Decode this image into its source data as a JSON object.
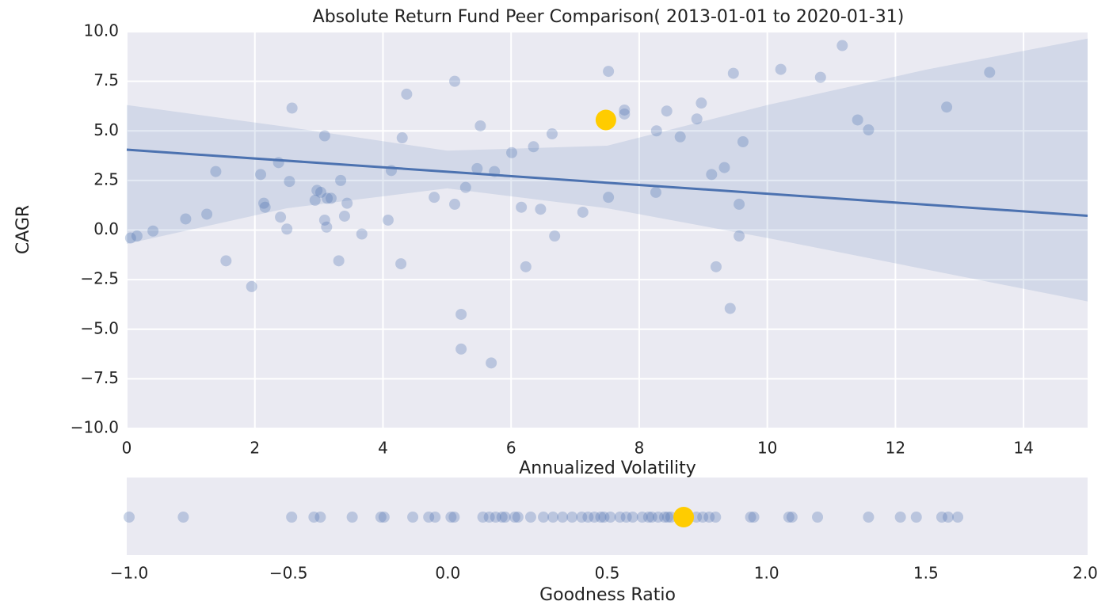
{
  "chart_data": [
    {
      "type": "scatter",
      "title": "Absolute Return Fund Peer Comparison( 2013-01-01 to 2020-01-31)",
      "xlabel": "Annualized Volatility",
      "ylabel": "CAGR",
      "x": [
        0.06,
        0.16,
        0.41,
        0.92,
        1.25,
        1.39,
        1.55,
        1.95,
        2.09,
        2.14,
        2.16,
        2.37,
        2.4,
        2.5,
        2.54,
        2.58,
        2.94,
        2.97,
        3.03,
        3.09,
        3.09,
        3.12,
        3.13,
        3.19,
        3.31,
        3.34,
        3.4,
        3.44,
        3.67,
        4.08,
        4.13,
        4.28,
        4.3,
        4.37,
        4.8,
        5.12,
        5.12,
        5.22,
        5.22,
        5.52,
        5.47,
        5.29,
        5.69,
        5.74,
        6.01,
        6.16,
        6.23,
        6.35,
        6.46,
        6.64,
        6.68,
        7.12,
        7.52,
        7.52,
        7.77,
        7.77,
        8.26,
        8.27,
        8.43,
        8.64,
        8.9,
        8.97,
        9.13,
        9.33,
        9.2,
        9.42,
        9.47,
        9.56,
        9.56,
        9.62,
        10.21,
        10.83,
        11.17,
        11.41,
        11.58,
        12.8,
        13.47
      ],
      "values": [
        -0.4,
        -0.3,
        -0.05,
        0.56,
        0.8,
        2.95,
        -1.55,
        -2.85,
        2.8,
        1.35,
        1.15,
        3.4,
        0.65,
        0.05,
        2.45,
        6.15,
        1.5,
        2.0,
        1.9,
        4.75,
        0.5,
        0.15,
        1.6,
        1.6,
        -1.55,
        2.5,
        0.7,
        1.35,
        -0.2,
        0.5,
        3.0,
        -1.7,
        4.65,
        6.85,
        1.65,
        7.5,
        1.3,
        -4.25,
        -6.0,
        5.25,
        3.1,
        2.15,
        -6.7,
        2.95,
        3.9,
        1.15,
        -1.85,
        4.2,
        1.05,
        4.85,
        -0.3,
        0.9,
        8.0,
        1.65,
        6.05,
        5.85,
        1.9,
        5.0,
        6.0,
        4.7,
        5.6,
        6.4,
        2.8,
        3.15,
        -1.85,
        -3.95,
        7.9,
        1.3,
        -0.3,
        4.45,
        8.1,
        7.7,
        9.3,
        5.55,
        5.05,
        6.2,
        7.95
      ],
      "color": "#4c72b0",
      "highlight": {
        "x": 7.48,
        "y": 5.55,
        "color": "#ffcc00"
      },
      "regression": {
        "x": [
          0,
          15
        ],
        "y": [
          4.05,
          0.72
        ],
        "color": "#4c72b0"
      },
      "band": {
        "x": [
          0,
          2.5,
          5,
          7.5,
          10,
          12.5,
          15
        ],
        "upper": [
          6.3,
          5.2,
          4.0,
          4.25,
          6.3,
          8.1,
          9.65
        ],
        "lower": [
          -0.7,
          1.1,
          2.1,
          1.1,
          -0.4,
          -2.0,
          -3.6
        ]
      },
      "xlim": [
        0,
        15
      ],
      "ylim": [
        -10,
        10
      ],
      "xticks": [
        0,
        2,
        4,
        6,
        8,
        10,
        12,
        14
      ],
      "yticks": [
        {
          "value": 10,
          "label": "10.0"
        },
        7.5,
        {
          "value": 5,
          "label": "5.0"
        },
        2.5,
        {
          "value": 0,
          "label": "0.0"
        },
        {
          "value": -2.5,
          "label": "−2.5"
        },
        {
          "value": -5,
          "label": "−5.0"
        },
        {
          "value": -7.5,
          "label": "−7.5"
        },
        {
          "value": -10,
          "label": "−10.0"
        }
      ],
      "grid": true
    },
    {
      "type": "strip",
      "xlabel": "Goodness Ratio",
      "values": [
        -1.0,
        -0.83,
        -0.49,
        -0.42,
        -0.4,
        -0.3,
        -0.21,
        -0.2,
        -0.11,
        -0.06,
        -0.04,
        0.01,
        0.02,
        0.11,
        0.13,
        0.15,
        0.17,
        0.18,
        0.21,
        0.22,
        0.26,
        0.3,
        0.33,
        0.36,
        0.39,
        0.42,
        0.44,
        0.46,
        0.48,
        0.49,
        0.51,
        0.54,
        0.56,
        0.58,
        0.61,
        0.63,
        0.64,
        0.66,
        0.68,
        0.69,
        0.7,
        0.78,
        0.8,
        0.82,
        0.84,
        0.95,
        0.96,
        1.07,
        1.08,
        1.16,
        1.32,
        1.42,
        1.47,
        1.55,
        1.57,
        1.6
      ],
      "color": "#4c72b0",
      "highlight": {
        "x": 0.74,
        "color": "#ffcc00"
      },
      "xlim": [
        -1,
        2
      ],
      "xticks": [
        {
          "value": -1,
          "label": "−1.0"
        },
        {
          "value": -0.5,
          "label": "−0.5"
        },
        {
          "value": 0,
          "label": "0.0"
        },
        0.5,
        {
          "value": 1,
          "label": "1.0"
        },
        1.5,
        {
          "value": 2,
          "label": "2.0"
        }
      ],
      "grid": false
    }
  ]
}
